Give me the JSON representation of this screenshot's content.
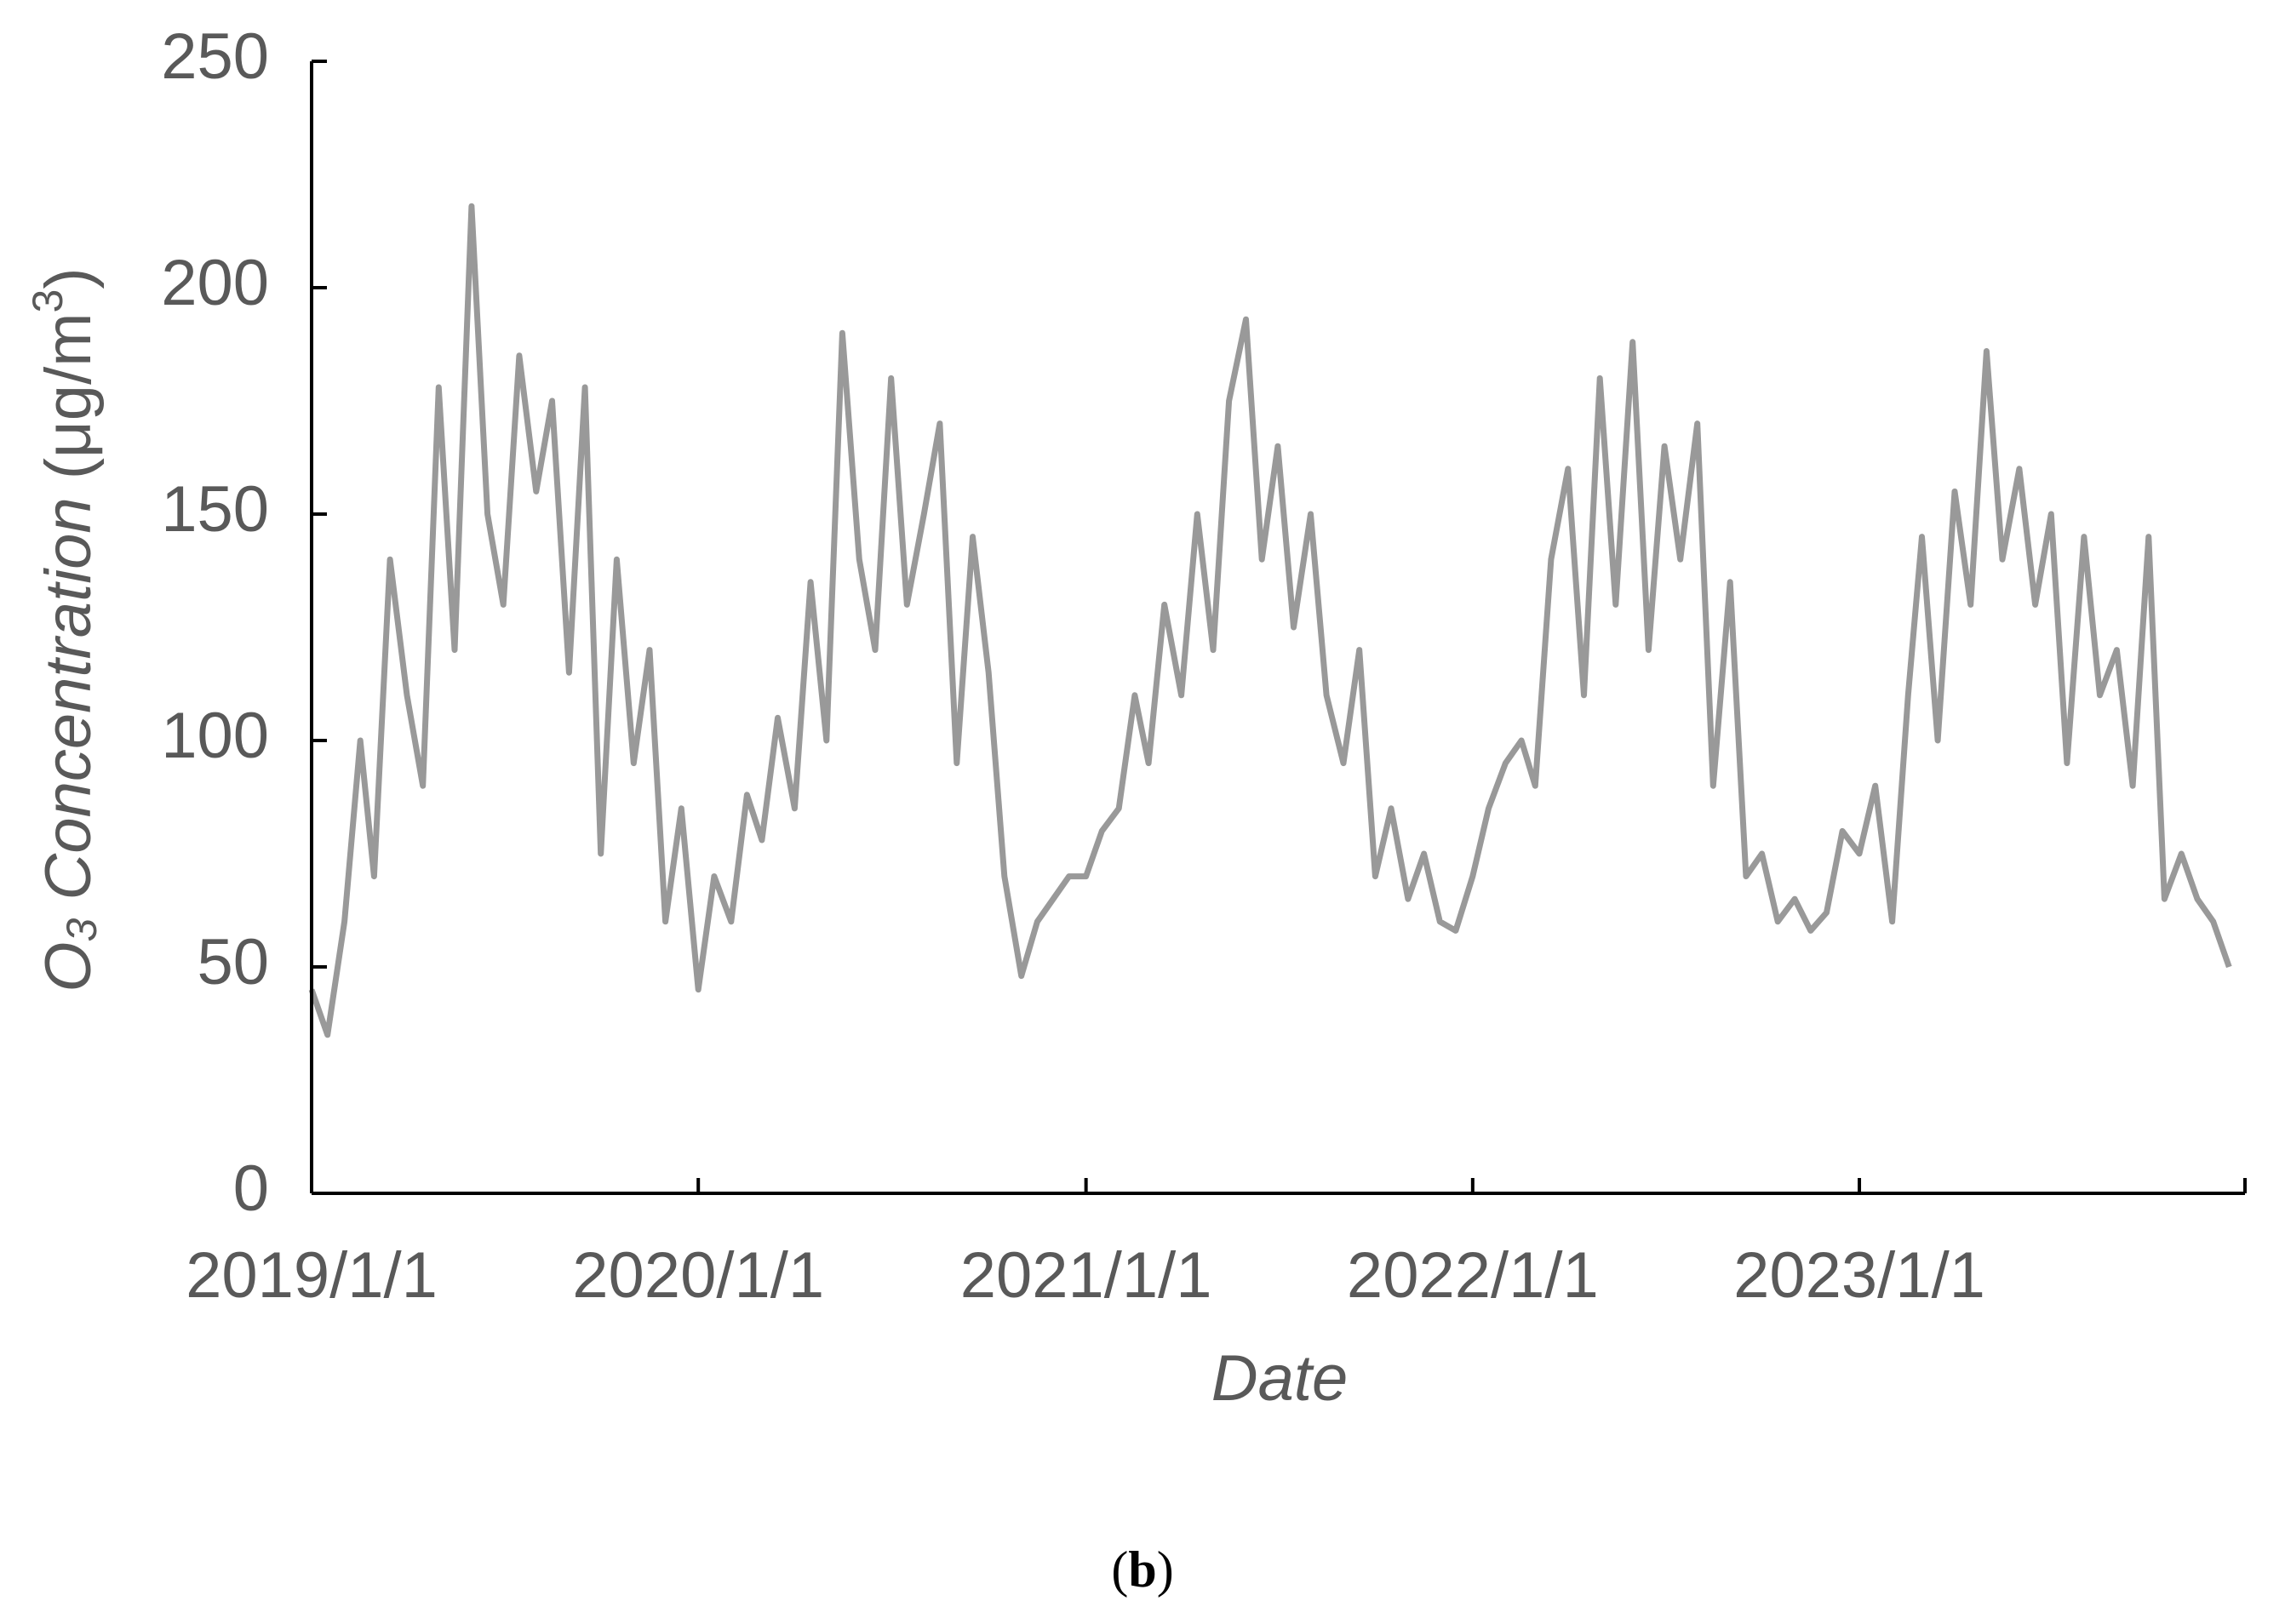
{
  "chart_data": {
    "type": "line",
    "y_label": {
      "o": "O",
      "sub": "3",
      "italic": " Concentration",
      "unit": " (μg/m",
      "sup": "3",
      "close": ")"
    },
    "x_label": "Date",
    "caption": {
      "open": "(",
      "bold": "b",
      "close": ")"
    },
    "color": "#999999",
    "xlim": [
      "2019/1/1",
      "2023/12/31"
    ],
    "xticks": [
      "2019/1/1",
      "2020/1/1",
      "2021/1/1",
      "2022/1/1",
      "2023/1/1"
    ],
    "ylim": [
      0,
      250
    ],
    "yticks": [
      0,
      50,
      100,
      150,
      200,
      250
    ],
    "x": [
      "2019/1/1",
      "2019/1/16",
      "2019/2/1",
      "2019/2/16",
      "2019/3/1",
      "2019/3/16",
      "2019/4/1",
      "2019/4/16",
      "2019/5/1",
      "2019/5/16",
      "2019/6/1",
      "2019/6/16",
      "2019/7/1",
      "2019/7/16",
      "2019/8/1",
      "2019/8/16",
      "2019/9/1",
      "2019/9/16",
      "2019/10/1",
      "2019/10/16",
      "2019/11/1",
      "2019/11/16",
      "2019/12/1",
      "2019/12/16",
      "2020/1/1",
      "2020/1/16",
      "2020/2/1",
      "2020/2/16",
      "2020/3/1",
      "2020/3/16",
      "2020/4/1",
      "2020/4/16",
      "2020/5/1",
      "2020/5/16",
      "2020/6/1",
      "2020/6/16",
      "2020/7/1",
      "2020/7/16",
      "2020/8/1",
      "2020/8/16",
      "2020/9/1",
      "2020/9/16",
      "2020/10/1",
      "2020/10/16",
      "2020/11/1",
      "2020/11/16",
      "2020/12/1",
      "2020/12/16",
      "2021/1/1",
      "2021/1/16",
      "2021/2/1",
      "2021/2/16",
      "2021/3/1",
      "2021/3/16",
      "2021/4/1",
      "2021/4/16",
      "2021/5/1",
      "2021/5/16",
      "2021/6/1",
      "2021/6/16",
      "2021/7/1",
      "2021/7/16",
      "2021/8/1",
      "2021/8/16",
      "2021/9/1",
      "2021/9/16",
      "2021/10/1",
      "2021/10/16",
      "2021/11/1",
      "2021/11/16",
      "2021/12/1",
      "2021/12/16",
      "2022/1/1",
      "2022/1/16",
      "2022/2/1",
      "2022/2/16",
      "2022/3/1",
      "2022/3/16",
      "2022/4/1",
      "2022/4/16",
      "2022/5/1",
      "2022/5/16",
      "2022/6/1",
      "2022/6/16",
      "2022/7/1",
      "2022/7/16",
      "2022/8/1",
      "2022/8/16",
      "2022/9/1",
      "2022/9/16",
      "2022/10/1",
      "2022/10/16",
      "2022/11/1",
      "2022/11/16",
      "2022/12/1",
      "2022/12/16",
      "2023/1/1",
      "2023/1/16",
      "2023/2/1",
      "2023/2/16",
      "2023/3/1",
      "2023/3/16",
      "2023/4/1",
      "2023/4/16",
      "2023/5/1",
      "2023/5/16",
      "2023/6/1",
      "2023/6/16",
      "2023/7/1",
      "2023/7/16",
      "2023/8/1",
      "2023/8/16",
      "2023/9/1",
      "2023/9/16",
      "2023/10/1",
      "2023/10/16",
      "2023/11/1",
      "2023/11/16",
      "2023/12/1",
      "2023/12/16"
    ],
    "values": [
      45,
      35,
      60,
      100,
      70,
      140,
      110,
      90,
      178,
      120,
      218,
      150,
      130,
      185,
      155,
      175,
      115,
      178,
      75,
      140,
      95,
      120,
      60,
      85,
      45,
      70,
      60,
      88,
      78,
      105,
      85,
      135,
      100,
      190,
      140,
      120,
      180,
      130,
      150,
      170,
      95,
      145,
      115,
      70,
      48,
      60,
      65,
      70,
      70,
      80,
      85,
      110,
      95,
      130,
      110,
      150,
      120,
      175,
      193,
      140,
      165,
      125,
      150,
      110,
      95,
      120,
      70,
      85,
      65,
      75,
      60,
      58,
      70,
      85,
      95,
      100,
      90,
      140,
      160,
      110,
      180,
      130,
      188,
      120,
      165,
      140,
      170,
      90,
      135,
      70,
      75,
      60,
      65,
      58,
      62,
      80,
      75,
      90,
      60,
      110,
      145,
      100,
      155,
      130,
      186,
      140,
      160,
      130,
      150,
      95,
      145,
      110,
      120,
      90,
      145,
      65,
      75,
      65,
      60,
      50
    ]
  }
}
